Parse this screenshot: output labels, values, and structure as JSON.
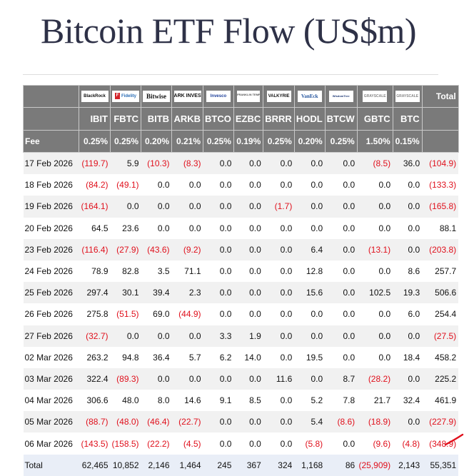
{
  "title": "Bitcoin ETF Flow (US$m)",
  "table": {
    "issuers": [
      {
        "ticker": "IBIT",
        "logo": "BlackRock",
        "logo_class": "blackrock",
        "fee": "0.25%"
      },
      {
        "ticker": "FBTC",
        "logo": "Fidelity",
        "logo_class": "fidelity",
        "fee": "0.25%"
      },
      {
        "ticker": "BITB",
        "logo": "Bitwise",
        "logo_class": "bitwise",
        "fee": "0.20%"
      },
      {
        "ticker": "ARKB",
        "logo": "ARK INVEST",
        "logo_class": "ark",
        "fee": "0.21%"
      },
      {
        "ticker": "BTCO",
        "logo": "Invesco",
        "logo_class": "invesco",
        "fee": "0.25%"
      },
      {
        "ticker": "EZBC",
        "logo": "FRANKLIN TEMPLETON",
        "logo_class": "franklin",
        "fee": "0.19%"
      },
      {
        "ticker": "BRRR",
        "logo": "VALKYRIE",
        "logo_class": "valkyrie",
        "fee": "0.25%"
      },
      {
        "ticker": "HODL",
        "logo": "VanEck",
        "logo_class": "vaneck",
        "fee": "0.20%"
      },
      {
        "ticker": "BTCW",
        "logo": "WisdomTree",
        "logo_class": "wisdomtree",
        "fee": "0.25%"
      },
      {
        "ticker": "GBTC",
        "logo": "GRAYSCALE",
        "logo_class": "grayscale",
        "fee": "1.50%"
      },
      {
        "ticker": "BTC",
        "logo": "GRAYSCALE",
        "logo_class": "grayscale",
        "fee": "0.15%"
      }
    ],
    "total_header": "Total",
    "fee_label": "Fee",
    "rows": [
      {
        "date": "17 Feb 2026",
        "values": [
          "(119.7)",
          "5.9",
          "(10.3)",
          "(8.3)",
          "0.0",
          "0.0",
          "0.0",
          "0.0",
          "0.0",
          "(8.5)",
          "36.0"
        ],
        "total": "(104.9)"
      },
      {
        "date": "18 Feb 2026",
        "values": [
          "(84.2)",
          "(49.1)",
          "0.0",
          "0.0",
          "0.0",
          "0.0",
          "0.0",
          "0.0",
          "0.0",
          "0.0",
          "0.0"
        ],
        "total": "(133.3)"
      },
      {
        "date": "19 Feb 2026",
        "values": [
          "(164.1)",
          "0.0",
          "0.0",
          "0.0",
          "0.0",
          "0.0",
          "(1.7)",
          "0.0",
          "0.0",
          "0.0",
          "0.0"
        ],
        "total": "(165.8)"
      },
      {
        "date": "20 Feb 2026",
        "values": [
          "64.5",
          "23.6",
          "0.0",
          "0.0",
          "0.0",
          "0.0",
          "0.0",
          "0.0",
          "0.0",
          "0.0",
          "0.0"
        ],
        "total": "88.1"
      },
      {
        "date": "23 Feb 2026",
        "values": [
          "(116.4)",
          "(27.9)",
          "(43.6)",
          "(9.2)",
          "0.0",
          "0.0",
          "0.0",
          "6.4",
          "0.0",
          "(13.1)",
          "0.0"
        ],
        "total": "(203.8)"
      },
      {
        "date": "24 Feb 2026",
        "values": [
          "78.9",
          "82.8",
          "3.5",
          "71.1",
          "0.0",
          "0.0",
          "0.0",
          "12.8",
          "0.0",
          "0.0",
          "8.6"
        ],
        "total": "257.7"
      },
      {
        "date": "25 Feb 2026",
        "values": [
          "297.4",
          "30.1",
          "39.4",
          "2.3",
          "0.0",
          "0.0",
          "0.0",
          "15.6",
          "0.0",
          "102.5",
          "19.3"
        ],
        "total": "506.6"
      },
      {
        "date": "26 Feb 2026",
        "values": [
          "275.8",
          "(51.5)",
          "69.0",
          "(44.9)",
          "0.0",
          "0.0",
          "0.0",
          "0.0",
          "0.0",
          "0.0",
          "6.0"
        ],
        "total": "254.4"
      },
      {
        "date": "27 Feb 2026",
        "values": [
          "(32.7)",
          "0.0",
          "0.0",
          "0.0",
          "3.3",
          "1.9",
          "0.0",
          "0.0",
          "0.0",
          "0.0",
          "0.0"
        ],
        "total": "(27.5)"
      },
      {
        "date": "02 Mar 2026",
        "values": [
          "263.2",
          "94.8",
          "36.4",
          "5.7",
          "6.2",
          "14.0",
          "0.0",
          "19.5",
          "0.0",
          "0.0",
          "18.4"
        ],
        "total": "458.2"
      },
      {
        "date": "03 Mar 2026",
        "values": [
          "322.4",
          "(89.3)",
          "0.0",
          "0.0",
          "0.0",
          "0.0",
          "11.6",
          "0.0",
          "8.7",
          "(28.2)",
          "0.0"
        ],
        "total": "225.2"
      },
      {
        "date": "04 Mar 2026",
        "values": [
          "306.6",
          "48.0",
          "8.0",
          "14.6",
          "9.1",
          "8.5",
          "0.0",
          "5.2",
          "7.8",
          "21.7",
          "32.4"
        ],
        "total": "461.9"
      },
      {
        "date": "05 Mar 2026",
        "values": [
          "(88.7)",
          "(48.0)",
          "(46.4)",
          "(22.7)",
          "0.0",
          "0.0",
          "0.0",
          "5.4",
          "(8.6)",
          "(18.9)",
          "0.0"
        ],
        "total": "(227.9)"
      },
      {
        "date": "06 Mar 2026",
        "values": [
          "(143.5)",
          "(158.5)",
          "(22.2)",
          "(4.5)",
          "0.0",
          "0.0",
          "0.0",
          "(5.8)",
          "0.0",
          "(9.6)",
          "(4.8)"
        ],
        "total": "(348.9)"
      }
    ],
    "totals_row": {
      "label": "Total",
      "values": [
        "62,465",
        "10,852",
        "2,146",
        "1,464",
        "245",
        "367",
        "324",
        "1,168",
        "86",
        "(25,909)",
        "2,143"
      ],
      "total": "55,351"
    }
  },
  "annotation": {
    "icon": "red-check-stroke",
    "color": "#e0101c"
  },
  "colors": {
    "header_bg": "#7a7a7a",
    "negative": "#e0101c",
    "row_alt": "#f1f1f1",
    "total_row_bg": "#e9eef7",
    "title": "#2e3147"
  }
}
